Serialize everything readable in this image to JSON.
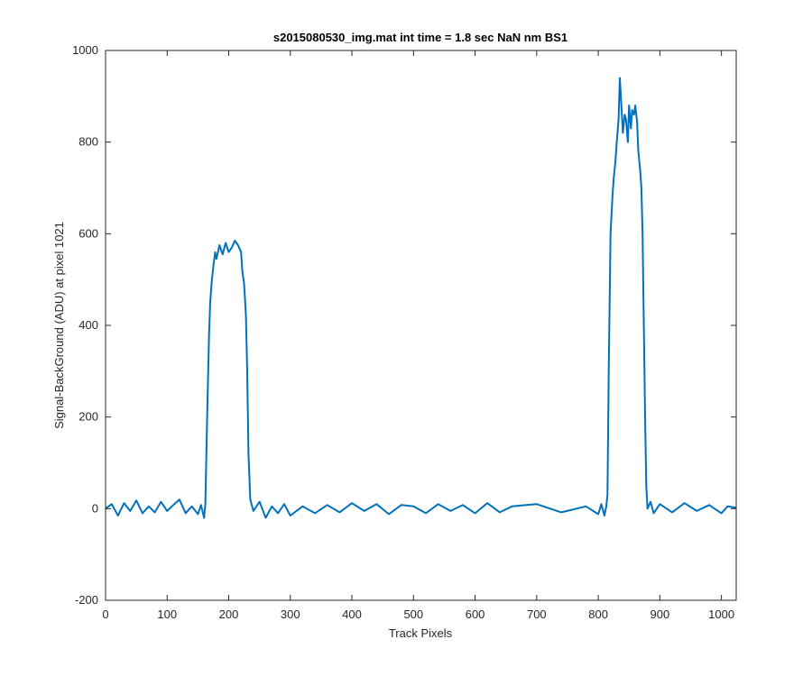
{
  "chart_data": {
    "type": "line",
    "title": "s2015080530_img.mat int time = 1.8 sec  NaN nm BS1",
    "xlabel": "Track Pixels",
    "ylabel": "Signal-BackGround (ADU) at pixel 1021",
    "xlim": [
      0,
      1024
    ],
    "ylim": [
      -200,
      1000
    ],
    "xticks": [
      0,
      100,
      200,
      300,
      400,
      500,
      600,
      700,
      800,
      900,
      1000
    ],
    "yticks": [
      -200,
      0,
      200,
      400,
      600,
      800,
      1000
    ],
    "xtick_labels": [
      "0",
      "100",
      "200",
      "300",
      "400",
      "500",
      "600",
      "700",
      "800",
      "900",
      "1000"
    ],
    "ytick_labels": [
      "-200",
      "0",
      "200",
      "400",
      "600",
      "800",
      "1000"
    ],
    "grid": false,
    "series": [
      {
        "color": "#0072BD",
        "x": [
          0,
          10,
          20,
          30,
          40,
          50,
          60,
          70,
          80,
          90,
          100,
          110,
          120,
          130,
          140,
          150,
          155,
          160,
          162,
          165,
          168,
          170,
          172,
          175,
          178,
          180,
          185,
          190,
          195,
          200,
          205,
          210,
          215,
          220,
          222,
          225,
          228,
          230,
          232,
          235,
          240,
          250,
          260,
          270,
          280,
          290,
          300,
          320,
          340,
          360,
          380,
          400,
          420,
          440,
          460,
          480,
          500,
          520,
          540,
          560,
          580,
          600,
          620,
          640,
          660,
          700,
          740,
          780,
          800,
          805,
          810,
          813,
          815,
          817,
          820,
          823,
          825,
          828,
          830,
          833,
          835,
          838,
          840,
          843,
          845,
          848,
          850,
          853,
          855,
          858,
          860,
          863,
          865,
          868,
          870,
          872,
          874,
          876,
          878,
          880,
          885,
          890,
          900,
          920,
          940,
          960,
          980,
          1000,
          1010,
          1024
        ],
        "y": [
          0,
          10,
          -15,
          12,
          -5,
          18,
          -10,
          5,
          -8,
          15,
          -5,
          8,
          20,
          -10,
          5,
          -12,
          8,
          -20,
          10,
          200,
          380,
          450,
          490,
          530,
          560,
          545,
          575,
          555,
          580,
          560,
          570,
          585,
          575,
          560,
          520,
          490,
          420,
          300,
          120,
          20,
          -5,
          15,
          -20,
          5,
          -10,
          10,
          -15,
          5,
          -10,
          8,
          -8,
          12,
          -5,
          10,
          -12,
          8,
          5,
          -10,
          10,
          -5,
          8,
          -10,
          12,
          -8,
          5,
          10,
          -8,
          5,
          -12,
          10,
          -15,
          5,
          30,
          300,
          600,
          680,
          720,
          760,
          800,
          850,
          940,
          870,
          820,
          860,
          850,
          800,
          880,
          830,
          870,
          860,
          880,
          845,
          780,
          740,
          700,
          600,
          400,
          200,
          50,
          0,
          15,
          -10,
          10,
          -8,
          12,
          -5,
          8,
          -10,
          5,
          2
        ]
      }
    ]
  }
}
